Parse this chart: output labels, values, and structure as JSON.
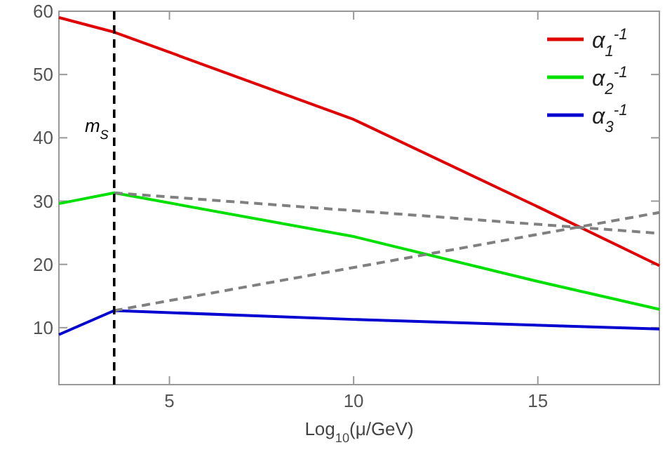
{
  "chart_data": {
    "type": "line",
    "xlabel": "Log$_{10}$(μ/GeV)",
    "xlim": [
      2,
      18.3
    ],
    "ylim": [
      1,
      60
    ],
    "xticks": [
      5,
      10,
      15
    ],
    "yticks": [
      10,
      20,
      30,
      40,
      50,
      60
    ],
    "legend": "top right",
    "grid": false,
    "marker": "none",
    "series": [
      {
        "name": "α$_{1}$$^{-1}$",
        "color": "#e00000",
        "x": [
          2,
          3.5,
          10,
          15,
          18.3
        ],
        "values": [
          59,
          56.7,
          42.9,
          29.1,
          19.8
        ]
      },
      {
        "name": "α$_{2}$$^{-1}$",
        "color": "#00e000",
        "x": [
          2,
          3.5,
          10,
          15,
          18.3
        ],
        "values": [
          29.6,
          31.3,
          24.4,
          17.3,
          12.9
        ]
      },
      {
        "name": "α$_{3}$$^{-1}$",
        "color": "#0000d0",
        "x": [
          2,
          3.5,
          10,
          18.3
        ],
        "values": [
          8.9,
          12.7,
          11.3,
          9.8
        ]
      },
      {
        "color": "#808080",
        "line_style": "dashed",
        "x": [
          3.5,
          18.3
        ],
        "values": [
          31.3,
          24.9
        ]
      },
      {
        "color": "#808080",
        "line_style": "dashed",
        "x": [
          3.5,
          18.3
        ],
        "values": [
          12.7,
          28.2
        ]
      }
    ],
    "ref_lines": [
      {
        "axis": "x",
        "value": 3.5,
        "label": "m$_{S}$",
        "color": "#000000",
        "line_style": "dashed"
      }
    ]
  }
}
